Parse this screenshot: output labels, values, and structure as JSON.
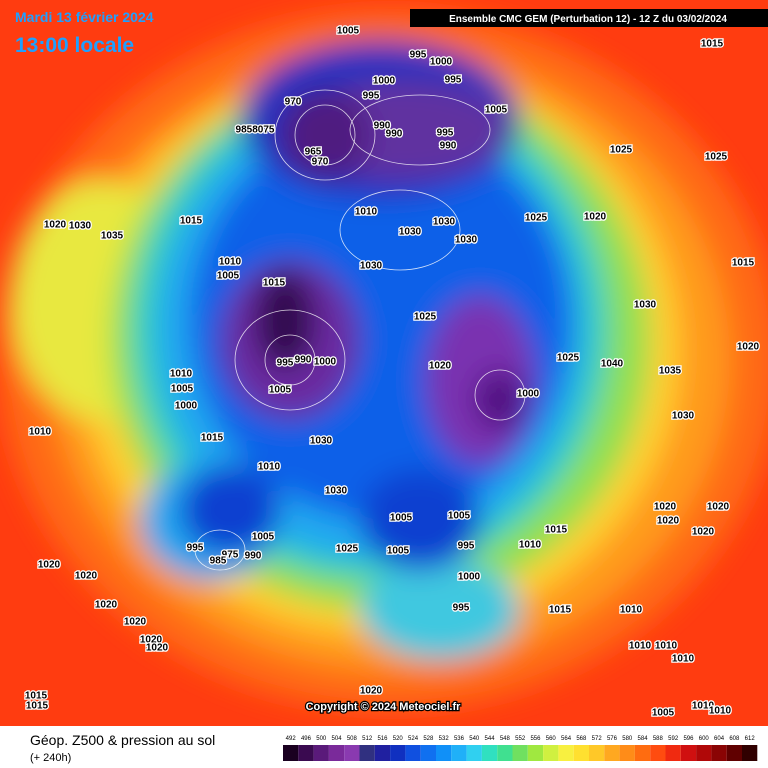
{
  "header": {
    "date": "Mardi 13 février 2024",
    "time": "13:00 locale",
    "run": "Ensemble CMC GEM  (Perturbation 12)  -  12 Z du 03/02/2024"
  },
  "map": {
    "isobar_labels": [
      "1005",
      "995",
      "1000",
      "995",
      "1000",
      "995",
      "1005",
      "970",
      "9858075",
      "965",
      "970",
      "990",
      "990",
      "995",
      "990",
      "1025",
      "1025",
      "1015",
      "1010",
      "1030",
      "1025",
      "1020",
      "1030",
      "1030",
      "1015",
      "1020",
      "1030",
      "1035",
      "1010",
      "1005",
      "1030",
      "1015",
      "1015",
      "1025",
      "1030",
      "1020",
      "995",
      "990",
      "1000",
      "1025",
      "1040",
      "1035",
      "1020",
      "1010",
      "1005",
      "1005",
      "1000",
      "1000",
      "1030",
      "1015",
      "1030",
      "1010",
      "1010",
      "1030",
      "1005",
      "1005",
      "1015",
      "1020",
      "1020",
      "1020",
      "1020",
      "1005",
      "995",
      "1025",
      "1005",
      "995",
      "1010",
      "975",
      "990",
      "985",
      "1020",
      "1020",
      "1000",
      "1020",
      "1020",
      "995",
      "1015",
      "1010",
      "1020",
      "1020",
      "1010",
      "1010",
      "1010",
      "1015",
      "1015",
      "1020",
      "1005",
      "1010",
      "1010"
    ],
    "copyright": "Copyright © 2024 Meteociel.fr"
  },
  "footer": {
    "field": "Géop. Z500 & pression au sol",
    "lead": "(+ 240h)"
  },
  "colorbar": {
    "labels": [
      492,
      496,
      500,
      504,
      508,
      512,
      516,
      520,
      524,
      528,
      532,
      536,
      540,
      544,
      548,
      552,
      556,
      560,
      564,
      568,
      572,
      576,
      580,
      584,
      588,
      592,
      596,
      600,
      604,
      608,
      612
    ]
  }
}
